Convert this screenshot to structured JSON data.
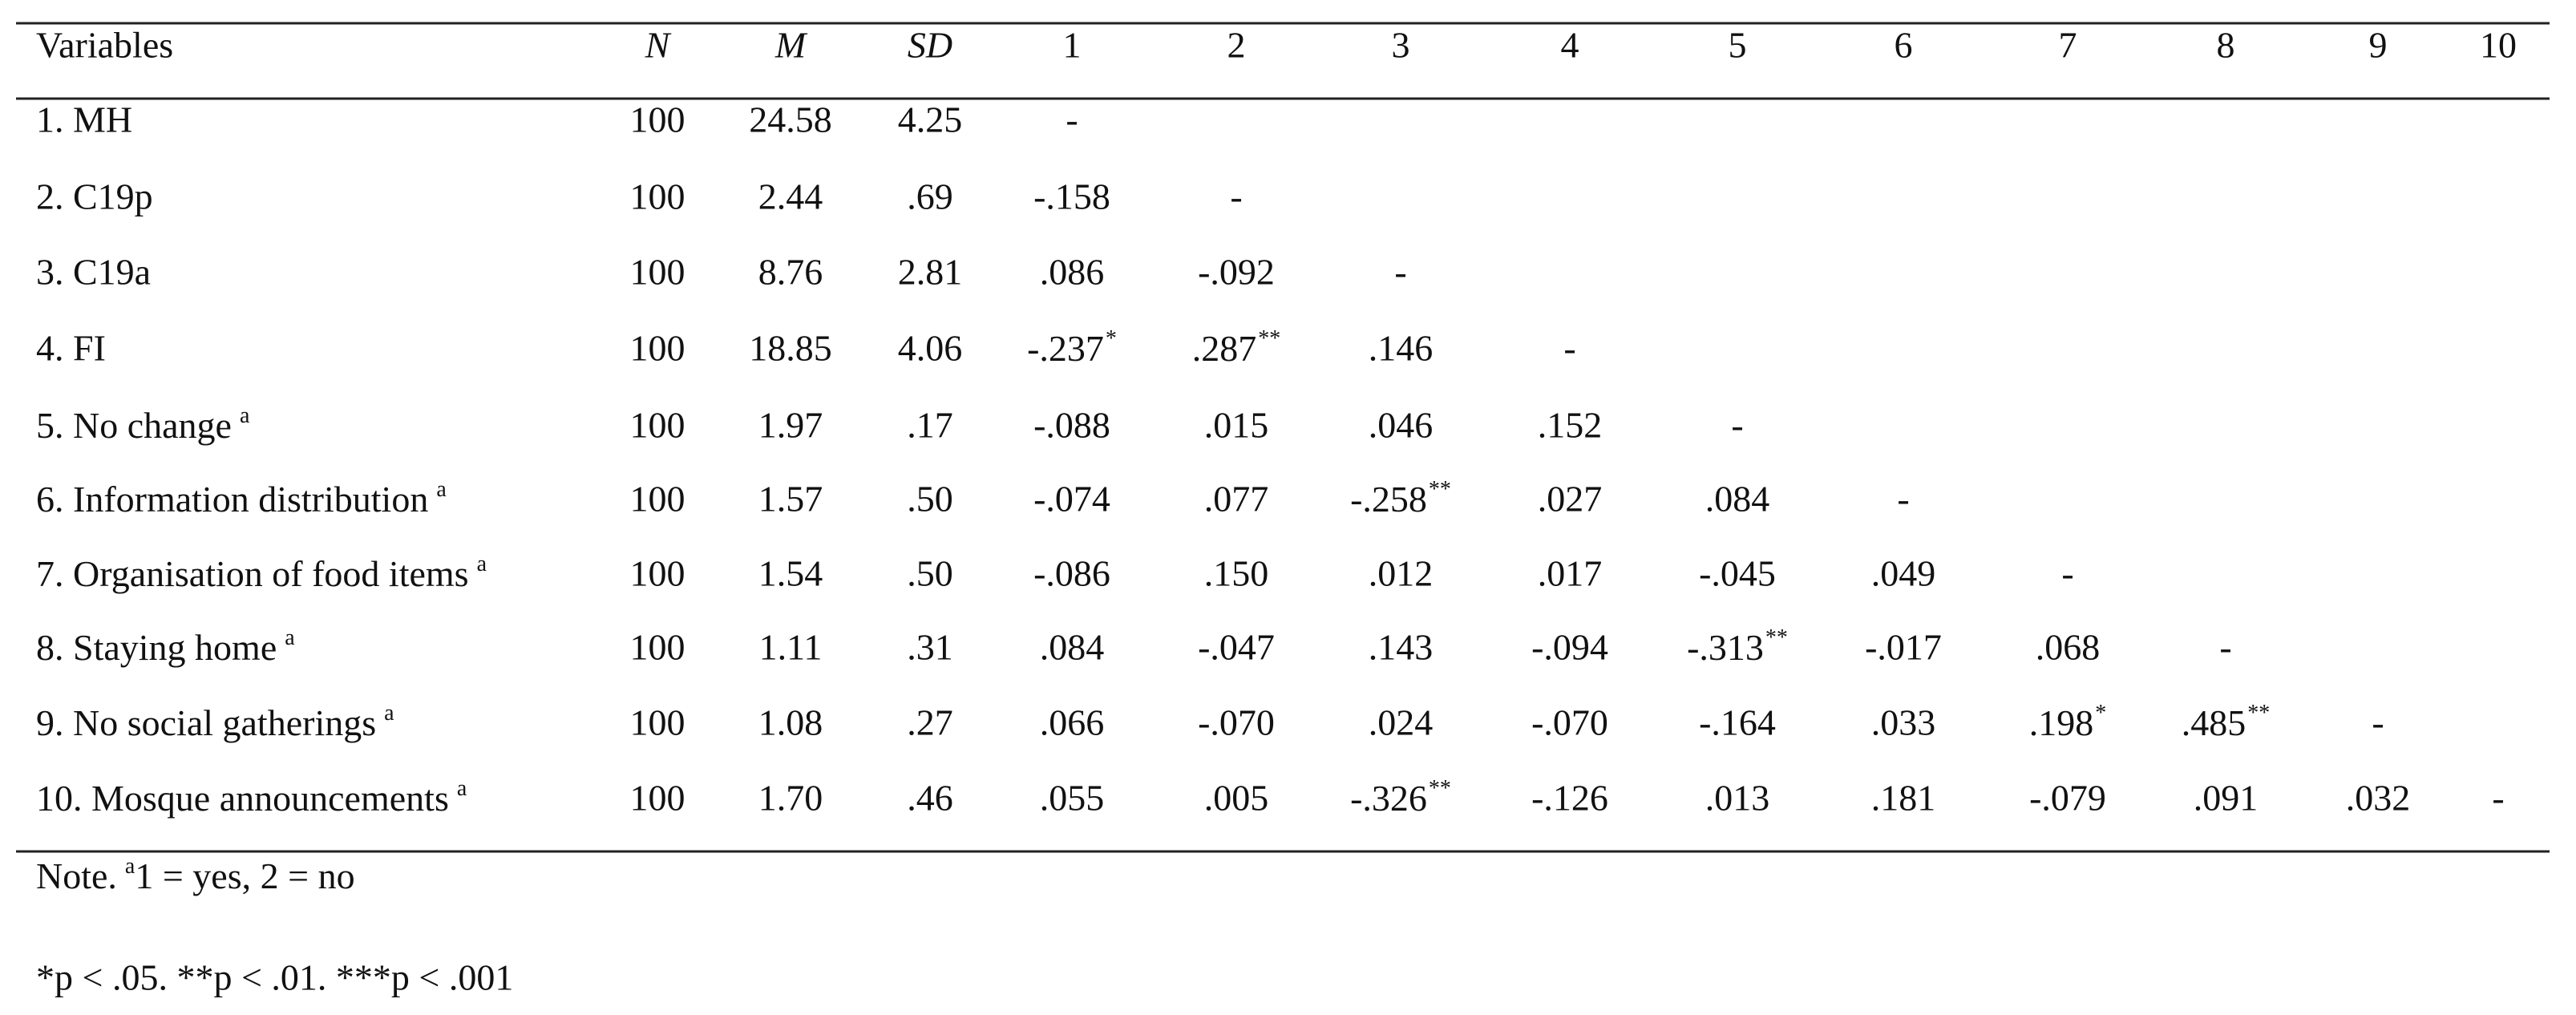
{
  "table": {
    "header": [
      "Variables",
      "N",
      "M",
      "SD",
      "1",
      "2",
      "3",
      "4",
      "5",
      "6",
      "7",
      "8",
      "9",
      "10"
    ],
    "rows": [
      [
        "1. MH",
        "100",
        "24.58",
        "4.25",
        "-"
      ],
      [
        "2. C19p",
        "100",
        "2.44",
        ".69",
        "-.158",
        "-"
      ],
      [
        "3. C19a",
        "100",
        "8.76",
        "2.81",
        ".086",
        "-.092",
        "-"
      ],
      [
        "4. FI",
        "100",
        "18.85",
        "4.06",
        {
          "text": "-.237",
          "sup": "*"
        },
        {
          "text": ".287",
          "sup": "**"
        },
        ".146",
        "-"
      ],
      [
        {
          "text": "5. No change",
          "sup": "a"
        },
        "100",
        "1.97",
        ".17",
        "-.088",
        ".015",
        ".046",
        ".152",
        "-"
      ],
      [
        {
          "text": "6. Information distribution",
          "sup": "a"
        },
        "100",
        "1.57",
        ".50",
        "-.074",
        ".077",
        {
          "text": "-.258",
          "sup": "**"
        },
        ".027",
        ".084",
        "-"
      ],
      [
        {
          "text": "7. Organisation of food items",
          "sup": "a"
        },
        "100",
        "1.54",
        ".50",
        "-.086",
        ".150",
        ".012",
        ".017",
        "-.045",
        ".049",
        "-"
      ],
      [
        {
          "text": "8. Staying home",
          "sup": "a"
        },
        "100",
        "1.11",
        ".31",
        ".084",
        "-.047",
        ".143",
        "-.094",
        {
          "text": "-.313",
          "sup": "**"
        },
        "-.017",
        ".068",
        "-"
      ],
      [
        {
          "text": "9. No social gatherings",
          "sup": "a"
        },
        "100",
        "1.08",
        ".27",
        ".066",
        "-.070",
        ".024",
        "-.070",
        "-.164",
        ".033",
        {
          "text": ".198",
          "sup": "*"
        },
        {
          "text": ".485",
          "sup": "**"
        },
        "-"
      ],
      [
        {
          "text": "10. Mosque announcements",
          "sup": "a"
        },
        "100",
        "1.70",
        ".46",
        ".055",
        ".005",
        {
          "text": "-.326",
          "sup": "**"
        },
        "-.126",
        ".013",
        ".181",
        "-.079",
        ".091",
        ".032",
        "-"
      ]
    ]
  },
  "note": {
    "label": "Note.",
    "sup": "a",
    "text": "1 = yes, 2 = no"
  },
  "significance": "*p < .05. **p < .01. ***p < .001"
}
